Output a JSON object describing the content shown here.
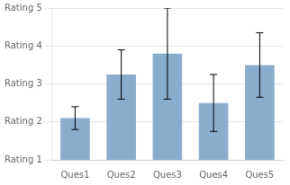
{
  "chart_data": {
    "type": "bar",
    "categories": [
      "Ques1",
      "Ques2",
      "Ques3",
      "Ques4",
      "Ques5"
    ],
    "values": [
      2.1,
      3.25,
      3.8,
      2.5,
      3.5
    ],
    "errors": [
      0.3,
      0.65,
      1.2,
      0.75,
      0.85
    ],
    "color": "#8aadce",
    "ylim": [
      1,
      5
    ],
    "yticks": [
      {
        "value": 1,
        "label": "Rating 1"
      },
      {
        "value": 2,
        "label": "Rating 2"
      },
      {
        "value": 3,
        "label": "Rating 3"
      },
      {
        "value": 4,
        "label": "Rating 4"
      },
      {
        "value": 5,
        "label": "Rating 5"
      }
    ],
    "grid": true
  }
}
